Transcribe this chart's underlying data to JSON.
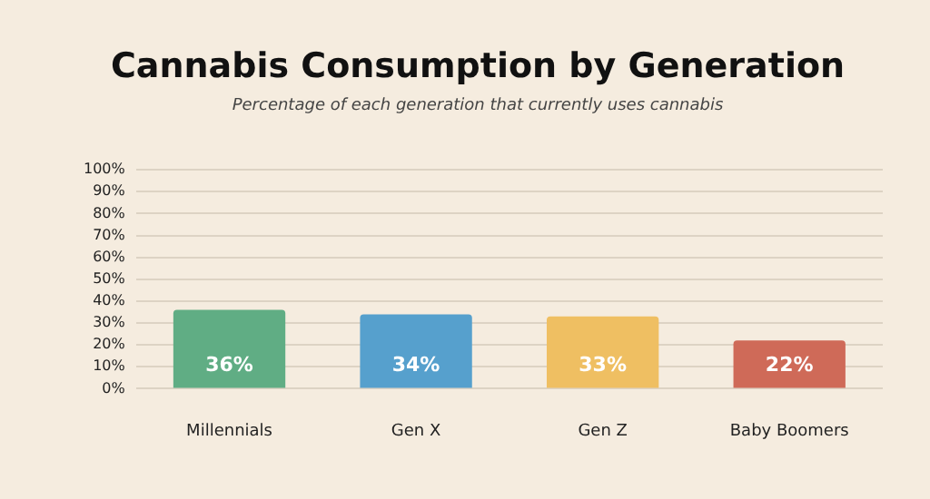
{
  "chart_data": {
    "type": "bar",
    "title": "Cannabis Consumption by Generation",
    "subtitle": "Percentage of each generation that currently uses cannabis",
    "categories": [
      "Millennials",
      "Gen X",
      "Gen Z",
      "Baby Boomers"
    ],
    "values": [
      36,
      34,
      33,
      22
    ],
    "colors": [
      "#60ad84",
      "#56a0cd",
      "#efbf62",
      "#cf6a58"
    ],
    "value_labels": [
      "36%",
      "34%",
      "33%",
      "22%"
    ],
    "ylim": [
      0,
      100
    ],
    "yticks": [
      {
        "value": 0,
        "label": "0%"
      },
      {
        "value": 10,
        "label": "10%"
      },
      {
        "value": 20,
        "label": "20%"
      },
      {
        "value": 30,
        "label": "30%"
      },
      {
        "value": 40,
        "label": "40%"
      },
      {
        "value": 50,
        "label": "50%"
      },
      {
        "value": 60,
        "label": "60%"
      },
      {
        "value": 70,
        "label": "70%"
      },
      {
        "value": 80,
        "label": "80%"
      },
      {
        "value": 90,
        "label": "90%"
      },
      {
        "value": 100,
        "label": "100%"
      }
    ],
    "grid": "y"
  }
}
